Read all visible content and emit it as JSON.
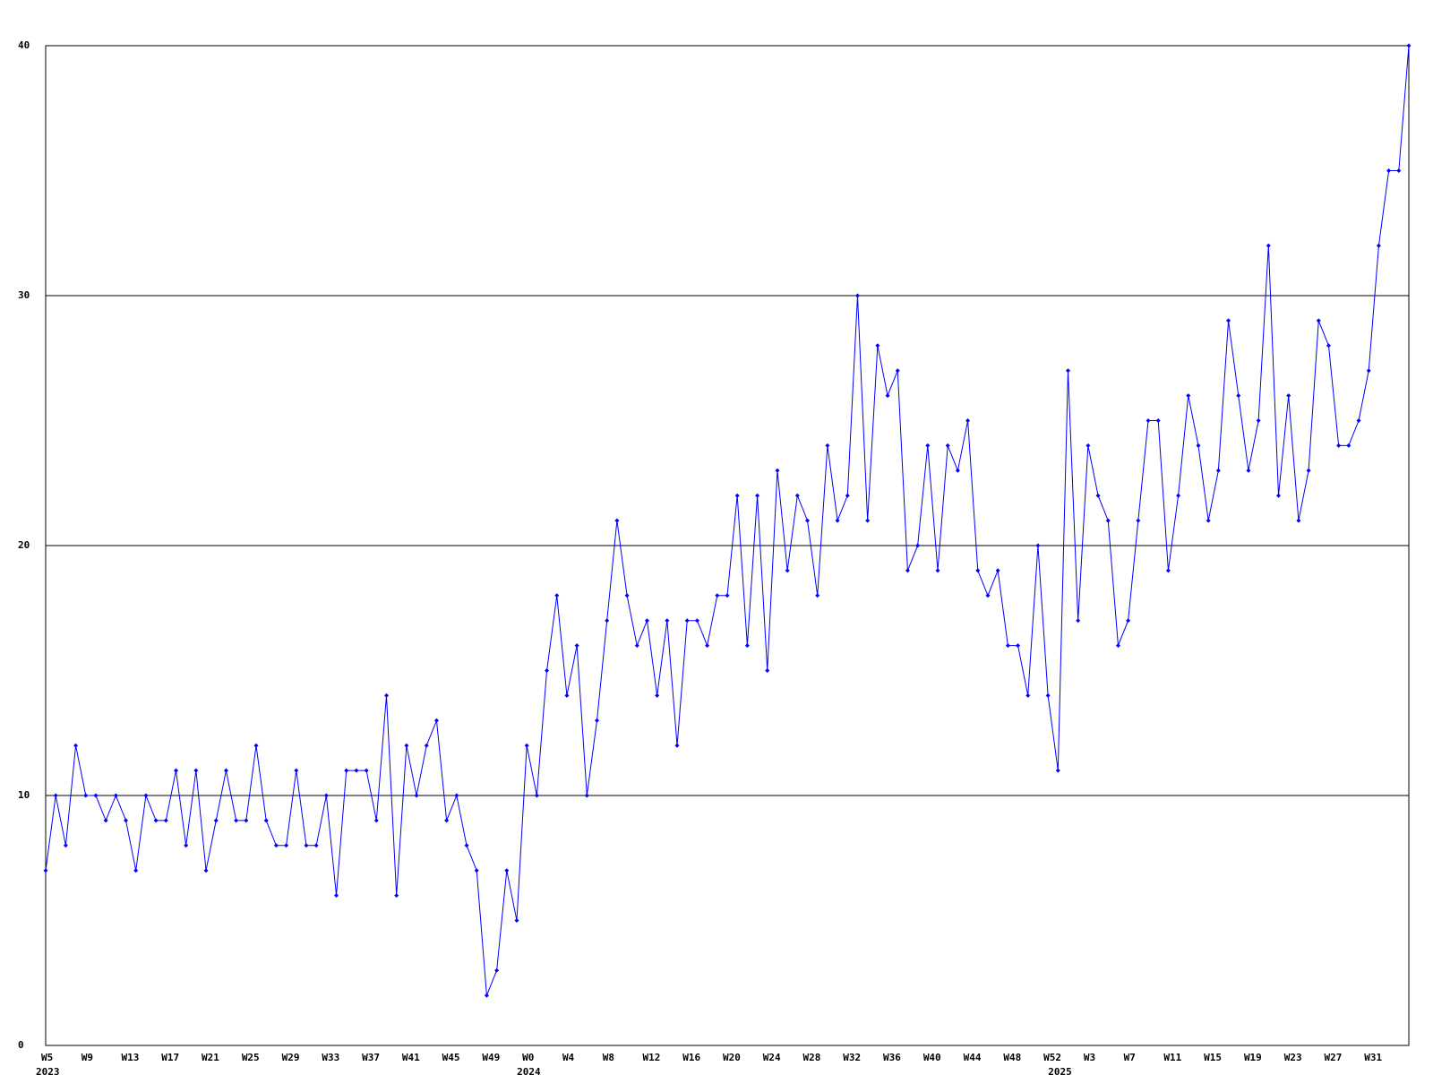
{
  "chart_data": {
    "type": "line",
    "categories": [
      "W5",
      null,
      null,
      null,
      "W9",
      null,
      null,
      null,
      "W13",
      null,
      null,
      null,
      "W17",
      null,
      null,
      null,
      "W21",
      null,
      null,
      null,
      "W25",
      null,
      null,
      null,
      "W29",
      null,
      null,
      null,
      "W33",
      null,
      null,
      null,
      "W37",
      null,
      null,
      null,
      "W41",
      null,
      null,
      null,
      "W45",
      null,
      null,
      null,
      "W49",
      null,
      null,
      null,
      "W0",
      null,
      null,
      null,
      "W4",
      null,
      null,
      null,
      "W8",
      null,
      null,
      null,
      "W12",
      null,
      null,
      null,
      "W16",
      null,
      null,
      null,
      "W20",
      null,
      null,
      null,
      "W24",
      null,
      null,
      null,
      "W28",
      null,
      null,
      null,
      "W32",
      null,
      null,
      null,
      "W36",
      null,
      null,
      null,
      "W40",
      null,
      null,
      null,
      "W44",
      null,
      null,
      null,
      "W48",
      null,
      null,
      null,
      "W52",
      null,
      null,
      null,
      "W3",
      null,
      null,
      null,
      "W7",
      null,
      null,
      null,
      "W11",
      null,
      null,
      null,
      "W15",
      null,
      null,
      null,
      "W19",
      null,
      null,
      null,
      "W23",
      null,
      null,
      null,
      "W27",
      null,
      null,
      null,
      "W31",
      null,
      null,
      null,
      null
    ],
    "year_labels": [
      "2023",
      null,
      null,
      null,
      null,
      null,
      null,
      null,
      null,
      null,
      null,
      null,
      null,
      null,
      null,
      null,
      null,
      null,
      null,
      null,
      null,
      null,
      null,
      null,
      null,
      null,
      null,
      null,
      null,
      null,
      null,
      null,
      null,
      null,
      null,
      null,
      null,
      null,
      null,
      null,
      null,
      null,
      null,
      null,
      null,
      null,
      null,
      null,
      "2024",
      null,
      null,
      null,
      null,
      null,
      null,
      null,
      null,
      null,
      null,
      null,
      null,
      null,
      null,
      null,
      null,
      null,
      null,
      null,
      null,
      null,
      null,
      null,
      null,
      null,
      null,
      null,
      null,
      null,
      null,
      null,
      null,
      null,
      null,
      null,
      null,
      null,
      null,
      null,
      null,
      null,
      null,
      null,
      null,
      null,
      null,
      null,
      null,
      null,
      null,
      null,
      null,
      "2025",
      null,
      null,
      null,
      null,
      null,
      null,
      null,
      null,
      null,
      null,
      null,
      null,
      null,
      null,
      null,
      null,
      null,
      null,
      null,
      null,
      null,
      null,
      null,
      null,
      null,
      null,
      null,
      null,
      null,
      null,
      null,
      null,
      null,
      null,
      null
    ],
    "values": [
      7,
      10,
      8,
      12,
      10,
      10,
      9,
      10,
      9,
      7,
      10,
      9,
      9,
      11,
      8,
      11,
      7,
      9,
      11,
      9,
      9,
      12,
      9,
      8,
      8,
      11,
      8,
      8,
      10,
      6,
      11,
      11,
      11,
      9,
      14,
      6,
      12,
      10,
      12,
      13,
      9,
      10,
      8,
      7,
      2,
      3,
      7,
      5,
      12,
      10,
      15,
      18,
      14,
      16,
      10,
      13,
      17,
      21,
      18,
      16,
      17,
      14,
      17,
      12,
      17,
      17,
      16,
      18,
      18,
      22,
      16,
      22,
      15,
      23,
      19,
      22,
      21,
      18,
      24,
      21,
      22,
      30,
      21,
      28,
      26,
      27,
      19,
      20,
      24,
      19,
      24,
      23,
      25,
      19,
      18,
      19,
      16,
      16,
      14,
      20,
      14,
      11,
      27,
      17,
      24,
      22,
      21,
      16,
      17,
      21,
      25,
      25,
      19,
      22,
      26,
      24,
      21,
      23,
      29,
      26,
      23,
      25,
      32,
      22,
      26,
      21,
      23,
      29,
      28,
      24,
      24,
      25,
      27,
      32,
      35,
      35,
      40
    ],
    "color": "#0000ff",
    "ylim": [
      0,
      40
    ],
    "yticks": [
      0,
      10,
      20,
      30,
      40
    ],
    "grid": true
  }
}
